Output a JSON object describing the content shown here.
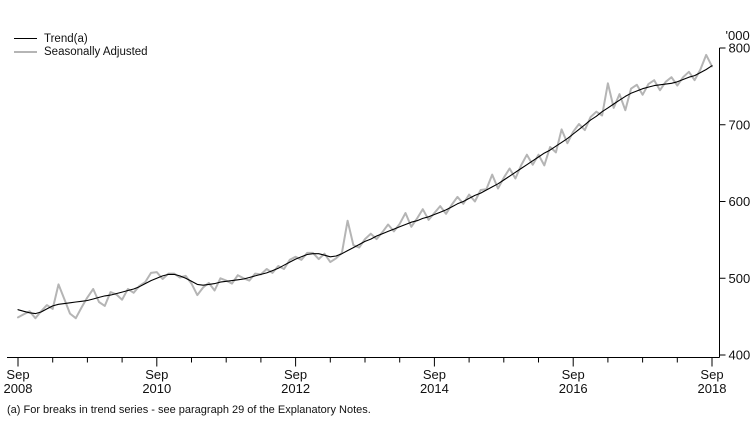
{
  "page": {
    "background": "#ffffff",
    "text_color": "#111111"
  },
  "footnote": "(a) For breaks in trend series - see paragraph 29 of the Explanatory Notes.",
  "chart_data": {
    "type": "line",
    "title": "",
    "xlabel": "",
    "ylabel": "'000",
    "ylim": [
      400,
      800
    ],
    "y_ticks": [
      400,
      500,
      600,
      700,
      800
    ],
    "grid": false,
    "legend_position": "top-left",
    "x_unit": "month",
    "x_points": 121,
    "x_range": [
      "Sep 2008",
      "Sep 2018"
    ],
    "x_minor_tick_interval_months": 6,
    "x_major_ticks": [
      {
        "month": 0,
        "top": "Sep",
        "bottom": "2008"
      },
      {
        "month": 24,
        "top": "Sep",
        "bottom": "2010"
      },
      {
        "month": 48,
        "top": "Sep",
        "bottom": "2012"
      },
      {
        "month": 72,
        "top": "Sep",
        "bottom": "2014"
      },
      {
        "month": 96,
        "top": "Sep",
        "bottom": "2016"
      },
      {
        "month": 120,
        "top": "Sep",
        "bottom": "2018"
      }
    ],
    "series": [
      {
        "name": "Trend(a)",
        "color": "#000000",
        "width": 1.1,
        "values": [
          459,
          457,
          455,
          454,
          456,
          460,
          464,
          466,
          467,
          468,
          469,
          470,
          471,
          473,
          475,
          477,
          478,
          480,
          482,
          484,
          486,
          489,
          493,
          497,
          500,
          503,
          505,
          505,
          503,
          500,
          496,
          492,
          491,
          492,
          493,
          495,
          496,
          497,
          498,
          499,
          501,
          503,
          505,
          507,
          510,
          513,
          517,
          521,
          525,
          528,
          531,
          532,
          532,
          530,
          528,
          529,
          532,
          536,
          540,
          544,
          548,
          551,
          555,
          558,
          561,
          564,
          567,
          570,
          573,
          575,
          578,
          580,
          583,
          586,
          589,
          593,
          597,
          600,
          604,
          608,
          611,
          615,
          619,
          623,
          628,
          633,
          638,
          643,
          648,
          653,
          658,
          663,
          667,
          672,
          677,
          682,
          688,
          694,
          700,
          706,
          711,
          717,
          722,
          727,
          732,
          737,
          741,
          744,
          747,
          749,
          751,
          752,
          753,
          754,
          756,
          759,
          762,
          764,
          768,
          772,
          777
        ]
      },
      {
        "name": "Seasonally Adjusted",
        "color": "#b5b5b5",
        "width": 2,
        "values": [
          449,
          453,
          457,
          448,
          457,
          465,
          460,
          492,
          473,
          454,
          448,
          462,
          475,
          486,
          469,
          464,
          482,
          479,
          472,
          486,
          481,
          490,
          495,
          507,
          508,
          499,
          506,
          506,
          501,
          503,
          493,
          478,
          488,
          494,
          484,
          500,
          497,
          493,
          504,
          500,
          497,
          506,
          505,
          512,
          507,
          516,
          512,
          524,
          528,
          524,
          533,
          533,
          525,
          532,
          521,
          526,
          533,
          575,
          543,
          540,
          551,
          558,
          551,
          560,
          570,
          561,
          571,
          585,
          567,
          578,
          590,
          576,
          585,
          594,
          584,
          596,
          606,
          597,
          609,
          600,
          615,
          616,
          635,
          617,
          631,
          643,
          630,
          647,
          661,
          648,
          661,
          647,
          671,
          664,
          694,
          676,
          691,
          701,
          693,
          710,
          717,
          712,
          754,
          722,
          740,
          719,
          747,
          752,
          739,
          753,
          758,
          745,
          756,
          762,
          751,
          762,
          769,
          758,
          772,
          791,
          776
        ]
      }
    ]
  }
}
